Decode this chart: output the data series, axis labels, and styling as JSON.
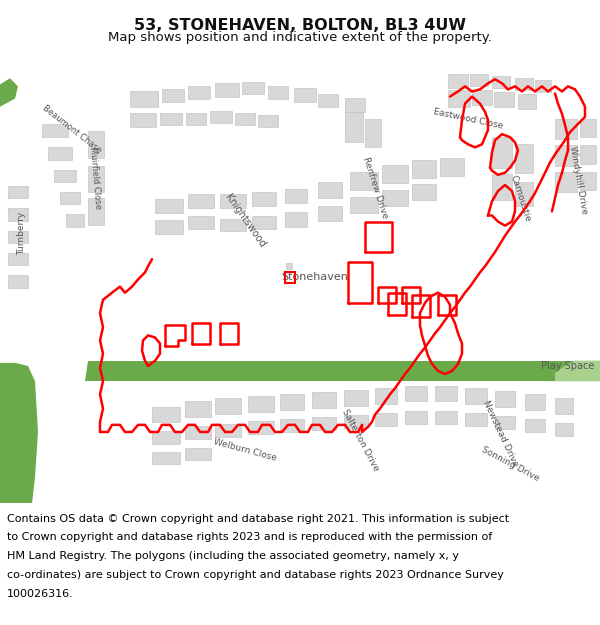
{
  "title": "53, STONEHAVEN, BOLTON, BL3 4UW",
  "subtitle": "Map shows position and indicative extent of the property.",
  "footer_lines": [
    "Contains OS data © Crown copyright and database right 2021. This information is subject",
    "to Crown copyright and database rights 2023 and is reproduced with the permission of",
    "HM Land Registry. The polygons (including the associated geometry, namely x, y",
    "co-ordinates) are subject to Crown copyright and database rights 2023 Ordnance Survey",
    "100026316."
  ],
  "title_fontsize": 11.5,
  "subtitle_fontsize": 9.5,
  "footer_fontsize": 8,
  "fig_bg_color": "#ffffff",
  "map_bg_color": "#ffffff",
  "building_color": "#d8d8d8",
  "building_edge_color": "#bbbbbb",
  "road_color": "#ffffff",
  "green_color": "#6aaa4a",
  "red_color": "#ff0000",
  "text_color": "#555555"
}
